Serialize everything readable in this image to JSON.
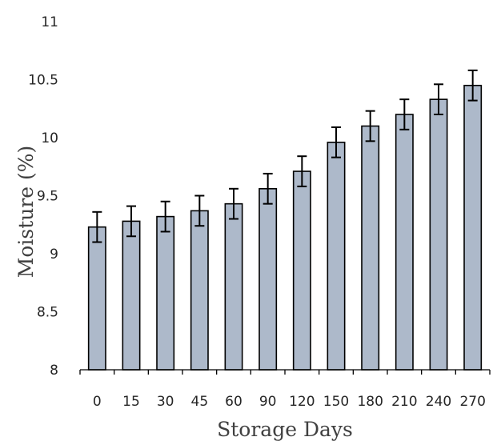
{
  "chart_data": {
    "type": "bar",
    "categories": [
      "0",
      "15",
      "30",
      "45",
      "60",
      "90",
      "120",
      "150",
      "180",
      "210",
      "240",
      "270"
    ],
    "values": [
      9.23,
      9.28,
      9.32,
      9.37,
      9.43,
      9.56,
      9.71,
      9.96,
      10.1,
      10.2,
      10.33,
      10.45
    ],
    "error": [
      0.13,
      0.13,
      0.13,
      0.13,
      0.13,
      0.13,
      0.13,
      0.13,
      0.13,
      0.13,
      0.13,
      0.13
    ],
    "xlabel": "Storage Days",
    "ylabel": "Moisture (%)",
    "ylim": [
      8,
      11
    ],
    "yticks": [
      "8",
      "8.5",
      "9",
      "9.5",
      "10",
      "10.5",
      "11"
    ],
    "grid": false,
    "colors": {
      "bar_fill": "#adb9ca",
      "bar_stroke": "#000000"
    }
  }
}
